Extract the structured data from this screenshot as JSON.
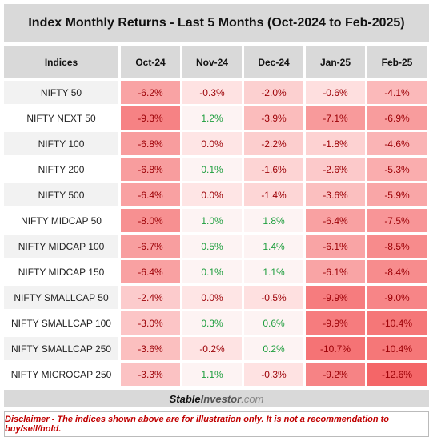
{
  "title": "Index Monthly Returns - Last 5 Months (Oct-2024 to Feb-2025)",
  "table": {
    "header": [
      "Indices",
      "Oct-24",
      "Nov-24",
      "Dec-24",
      "Jan-25",
      "Feb-25"
    ],
    "rows": [
      [
        "NIFTY 50",
        "-6.2%",
        "-0.3%",
        "-2.0%",
        "-0.6%",
        "-4.1%"
      ],
      [
        "NIFTY NEXT 50",
        "-9.3%",
        "1.2%",
        "-3.9%",
        "-7.1%",
        "-6.9%"
      ],
      [
        "NIFTY 100",
        "-6.8%",
        "0.0%",
        "-2.2%",
        "-1.8%",
        "-4.6%"
      ],
      [
        "NIFTY 200",
        "-6.8%",
        "0.1%",
        "-1.6%",
        "-2.6%",
        "-5.3%"
      ],
      [
        "NIFTY 500",
        "-6.4%",
        "0.0%",
        "-1.4%",
        "-3.6%",
        "-5.9%"
      ],
      [
        "NIFTY MIDCAP 50",
        "-8.0%",
        "1.0%",
        "1.8%",
        "-6.4%",
        "-7.5%"
      ],
      [
        "NIFTY MIDCAP 100",
        "-6.7%",
        "0.5%",
        "1.4%",
        "-6.1%",
        "-8.5%"
      ],
      [
        "NIFTY MIDCAP 150",
        "-6.4%",
        "0.1%",
        "1.1%",
        "-6.1%",
        "-8.4%"
      ],
      [
        "NIFTY SMALLCAP 50",
        "-2.4%",
        "0.0%",
        "-0.5%",
        "-9.9%",
        "-9.0%"
      ],
      [
        "NIFTY SMALLCAP 100",
        "-3.0%",
        "0.3%",
        "0.6%",
        "-9.9%",
        "-10.4%"
      ],
      [
        "NIFTY SMALLCAP 250",
        "-3.6%",
        "-0.2%",
        "0.2%",
        "-10.7%",
        "-10.4%"
      ],
      [
        "NIFTY MICROCAP 250",
        "-3.3%",
        "1.1%",
        "-0.3%",
        "-9.2%",
        "-12.6%"
      ]
    ]
  },
  "footer": {
    "brand": [
      "Stable",
      "Investor",
      ".com"
    ]
  },
  "disclaimer": "Disclaimer - The indices shown above are for illustration only. It is not a recommendation to buy/sell/hold."
}
